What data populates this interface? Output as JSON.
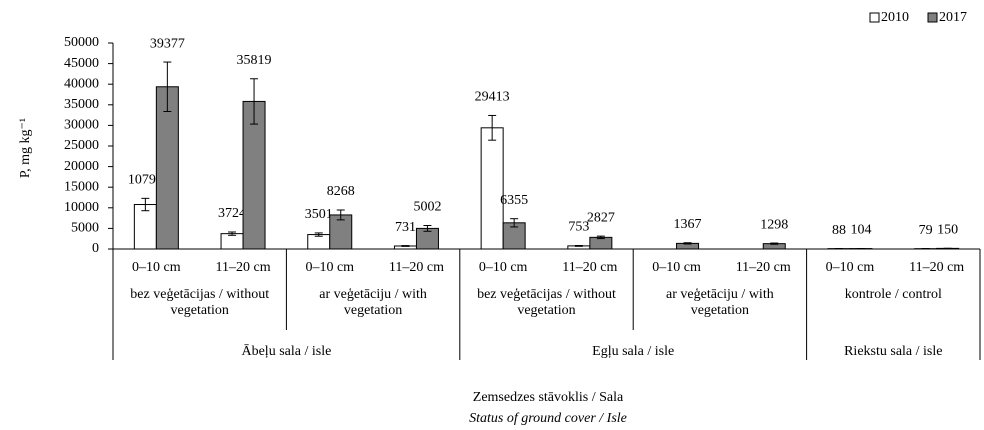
{
  "chart_data": {
    "type": "bar",
    "y_label": "P, mg kg⁻¹",
    "x_label": [
      "Zemsedzes stāvoklis / Sala",
      "Status of ground cover / Isle"
    ],
    "isles": [
      {
        "label": "Ābeļu sala / isle",
        "groups": [
          {
            "label": "bez veģetācijas / without vegetation",
            "categories": [
              "0–10 cm",
              "11–20 cm"
            ]
          },
          {
            "label": "ar veģetāciju / with vegetation",
            "categories": [
              "0–10 cm",
              "11–20 cm"
            ]
          }
        ]
      },
      {
        "label": "Egļu sala / isle",
        "groups": [
          {
            "label": "bez veģetācijas / without vegetation",
            "categories": [
              "0–10 cm",
              "11–20 cm"
            ]
          },
          {
            "label": "ar veģetāciju / with vegetation",
            "categories": [
              "0–10 cm",
              "11–20 cm"
            ]
          }
        ]
      },
      {
        "label": "Riekstu sala / isle",
        "groups": [
          {
            "label": "kontrole / control",
            "categories": [
              "0–10 cm",
              "11–20 cm"
            ]
          }
        ]
      }
    ],
    "series": [
      {
        "name": "2010",
        "color": "#ffffff",
        "values": [
          10795,
          3724,
          3501,
          731,
          29413,
          753,
          null,
          null,
          88,
          79
        ],
        "errors": [
          1500,
          400,
          400,
          100,
          3000,
          100,
          null,
          null,
          20,
          20
        ]
      },
      {
        "name": "2017",
        "color": "#808080",
        "values": [
          39377,
          35819,
          8268,
          5002,
          6355,
          2827,
          1367,
          1298,
          104,
          150
        ],
        "errors": [
          6000,
          5500,
          1200,
          700,
          1000,
          300,
          150,
          150,
          20,
          20
        ]
      }
    ],
    "ylim": [
      0,
      50000
    ],
    "yticks": [
      0,
      5000,
      10000,
      15000,
      20000,
      25000,
      30000,
      35000,
      40000,
      45000,
      50000
    ],
    "legend": "top-right",
    "grid": false
  }
}
